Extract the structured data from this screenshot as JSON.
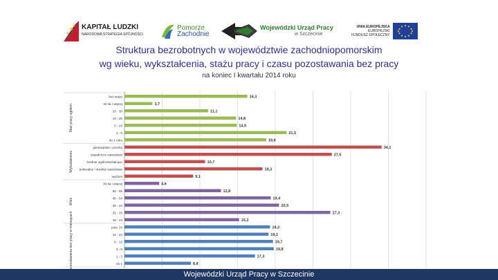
{
  "logos": {
    "kapital_title": "KAPITAŁ LUDZKI",
    "kapital_sub": "NARODOWA STRATEGIA SPÓJNOŚCI",
    "pomorze_title": "Pomorze",
    "pomorze_sub": "Zachodnie",
    "wup_title": "Wojewódzki Urząd Pracy",
    "wup_sub": "w Szczecinie",
    "eu_title": "UNIA EUROPEJSKA",
    "eu_sub1": "EUROPEJSKI",
    "eu_sub2": "FUNDUSZ SPOŁECZNY"
  },
  "header": {
    "title_line1": "Struktura bezrobotnych w województwie zachodniopomorskim",
    "title_line2": "wg wieku, wykształcenia, stażu pracy i czasu pozostawania bez pracy",
    "subtitle": "na koniec I kwartału 2014 roku"
  },
  "footer": {
    "text": "Wojewódzki Urząd Pracy w Szczecinie"
  },
  "chart_data": {
    "type": "bar",
    "orientation": "horizontal",
    "xlim": [
      0,
      40
    ],
    "x_ticks": [
      "0.0",
      "5.0",
      "10.0",
      "15.0",
      "20.0",
      "25.0",
      "30.0",
      "35.0",
      "40.0"
    ],
    "colors": {
      "green": "#9bbb59",
      "red": "#c0504d",
      "purple": "#8064a2",
      "blue": "#4f81bd",
      "grid": "#d9d9d9"
    },
    "groups": [
      {
        "label": "Staż pracy ogółem",
        "color": "green",
        "bars": [
          {
            "label": "bez stażu",
            "value": 16.3,
            "value_label": "16,3"
          },
          {
            "label": "30 lat i więcej",
            "value": 3.7,
            "value_label": "3,7"
          },
          {
            "label": "20 - 30",
            "value": 11.1,
            "value_label": "11,1"
          },
          {
            "label": "10 - 20",
            "value": 14.8,
            "value_label": "14,8"
          },
          {
            "label": "5 - 10",
            "value": 14.9,
            "value_label": "14,9"
          },
          {
            "label": "1 - 5",
            "value": 21.5,
            "value_label": "21,5"
          },
          {
            "label": "do 1 roku",
            "value": 18.8,
            "value_label": "18,8"
          }
        ]
      },
      {
        "label": "Wykształcenie",
        "color": "red",
        "bars": [
          {
            "label": "gimnazjalne i poniżej",
            "value": 34.1,
            "value_label": "34,1"
          },
          {
            "label": "zasadnicze zawodowe",
            "value": 27.5,
            "value_label": "27,5"
          },
          {
            "label": "średnie ogólnokształcące",
            "value": 10.7,
            "value_label": "10,7"
          },
          {
            "label": "policealne i średnie zawodowe",
            "value": 18.3,
            "value_label": "18,3"
          },
          {
            "label": "wyższe",
            "value": 9.1,
            "value_label": "9,1"
          }
        ]
      },
      {
        "label": "Wiek",
        "color": "purple",
        "bars": [
          {
            "label": "60 lat i więcej",
            "value": 4.6,
            "value_label": "4,6"
          },
          {
            "label": "55 - 59",
            "value": 12.8,
            "value_label": "12,8"
          },
          {
            "label": "45 - 54",
            "value": 19.4,
            "value_label": "19,4"
          },
          {
            "label": "35 - 44",
            "value": 20.5,
            "value_label": "20,5"
          },
          {
            "label": "25 - 34",
            "value": 27.3,
            "value_label": "27,3"
          },
          {
            "label": "18 - 24",
            "value": 15.2,
            "value_label": "15,2"
          }
        ]
      },
      {
        "label": "Czas pozostawania bez pracy w miesiącach",
        "color": "blue",
        "bars": [
          {
            "label": "pow. 24",
            "value": 19.3,
            "value_label": "19,3"
          },
          {
            "label": "12 - 24",
            "value": 19.1,
            "value_label": "19,1"
          },
          {
            "label": "6 - 12",
            "value": 19.7,
            "value_label": "19,7"
          },
          {
            "label": "3 - 6",
            "value": 19.8,
            "value_label": "19,8"
          },
          {
            "label": "1 - 3",
            "value": 17.3,
            "value_label": "17,3"
          },
          {
            "label": "do 1",
            "value": 8.8,
            "value_label": "8,8"
          }
        ]
      }
    ]
  }
}
